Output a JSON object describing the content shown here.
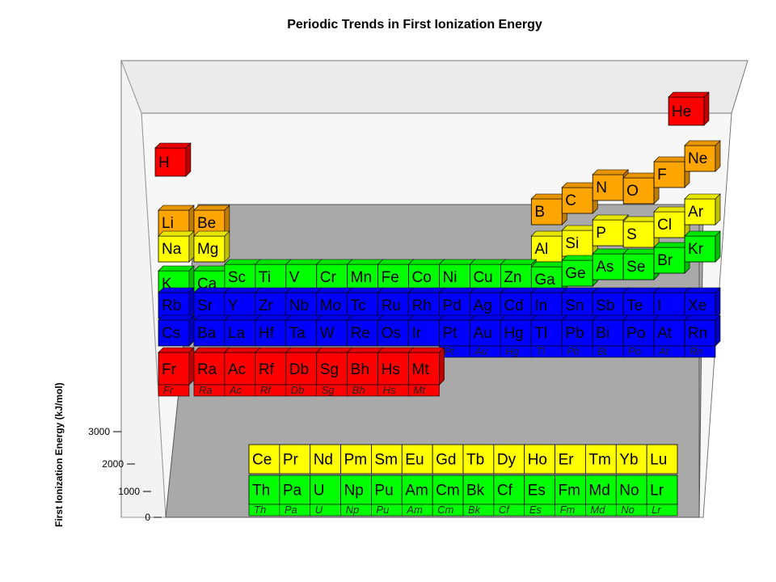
{
  "chart_data": {
    "type": "3d-bar",
    "title": "Periodic Trends in First Ionization Energy",
    "zlabel": "First Ionization Energy (kJ/mol)",
    "zticks": [
      "0",
      "1000",
      "2000",
      "3000"
    ],
    "zlim": [
      0,
      3000
    ],
    "colors": {
      "red": "#ff0000",
      "orange": "#ffa500",
      "yellow": "#ffff00",
      "green": "#00ff00",
      "blue": "#0000ff",
      "floor": "#a9a9a9",
      "wall": "#f2f2f2"
    },
    "main_table": [
      [
        "H",
        "",
        "",
        "",
        "",
        "",
        "",
        "",
        "",
        "",
        "",
        "",
        "",
        "",
        "",
        "",
        "",
        "He"
      ],
      [
        "Li",
        "Be",
        "",
        "",
        "",
        "",
        "",
        "",
        "",
        "",
        "",
        "",
        "B",
        "C",
        "N",
        "O",
        "F",
        "Ne"
      ],
      [
        "Na",
        "Mg",
        "",
        "",
        "",
        "",
        "",
        "",
        "",
        "",
        "",
        "",
        "Al",
        "Si",
        "P",
        "S",
        "Cl",
        "Ar"
      ],
      [
        "K",
        "Ca",
        "Sc",
        "Ti",
        "V",
        "Cr",
        "Mn",
        "Fe",
        "Co",
        "Ni",
        "Cu",
        "Zn",
        "Ga",
        "Ge",
        "As",
        "Se",
        "Br",
        "Kr"
      ],
      [
        "Rb",
        "Sr",
        "Y",
        "Zr",
        "Nb",
        "Mo",
        "Tc",
        "Ru",
        "Rh",
        "Pd",
        "Ag",
        "Cd",
        "In",
        "Sn",
        "Sb",
        "Te",
        "I",
        "Xe"
      ],
      [
        "Cs",
        "Ba",
        "La",
        "Hf",
        "Ta",
        "W",
        "Re",
        "Os",
        "Ir",
        "Pt",
        "Au",
        "Hg",
        "Tl",
        "Pb",
        "Bi",
        "Po",
        "At",
        "Rn"
      ],
      [
        "Fr",
        "Ra",
        "Ac",
        "Rf",
        "Db",
        "Sg",
        "Bh",
        "Hs",
        "Mt",
        "",
        "",
        "",
        "",
        "",
        "",
        "",
        "",
        ""
      ]
    ],
    "main_colors": [
      [
        "red",
        "",
        "",
        "",
        "",
        "",
        "",
        "",
        "",
        "",
        "",
        "",
        "",
        "",
        "",
        "",
        "",
        "red"
      ],
      [
        "orange",
        "orange",
        "",
        "",
        "",
        "",
        "",
        "",
        "",
        "",
        "",
        "",
        "orange",
        "orange",
        "orange",
        "orange",
        "orange",
        "orange"
      ],
      [
        "yellow",
        "yellow",
        "",
        "",
        "",
        "",
        "",
        "",
        "",
        "",
        "",
        "",
        "yellow",
        "yellow",
        "yellow",
        "yellow",
        "yellow",
        "yellow"
      ],
      [
        "green",
        "green",
        "green",
        "green",
        "green",
        "green",
        "green",
        "green",
        "green",
        "green",
        "green",
        "green",
        "green",
        "green",
        "green",
        "green",
        "green",
        "green"
      ],
      [
        "blue",
        "blue",
        "blue",
        "blue",
        "blue",
        "blue",
        "blue",
        "blue",
        "blue",
        "blue",
        "blue",
        "blue",
        "blue",
        "blue",
        "blue",
        "blue",
        "blue",
        "blue"
      ],
      [
        "blue",
        "blue",
        "blue",
        "blue",
        "blue",
        "blue",
        "blue",
        "blue",
        "blue",
        "blue",
        "blue",
        "blue",
        "blue",
        "blue",
        "blue",
        "blue",
        "blue",
        "blue"
      ],
      [
        "red",
        "red",
        "red",
        "red",
        "red",
        "red",
        "red",
        "red",
        "red",
        "",
        "",
        "",
        "",
        "",
        "",
        "",
        "",
        ""
      ]
    ],
    "lanthanides": [
      "Ce",
      "Pr",
      "Nd",
      "Pm",
      "Sm",
      "Eu",
      "Gd",
      "Tb",
      "Dy",
      "Ho",
      "Er",
      "Tm",
      "Yb",
      "Lu"
    ],
    "actinides": [
      "Th",
      "Pa",
      "U",
      "Np",
      "Pu",
      "Am",
      "Cm",
      "Bk",
      "Cf",
      "Es",
      "Fm",
      "Md",
      "No",
      "Lr"
    ]
  }
}
